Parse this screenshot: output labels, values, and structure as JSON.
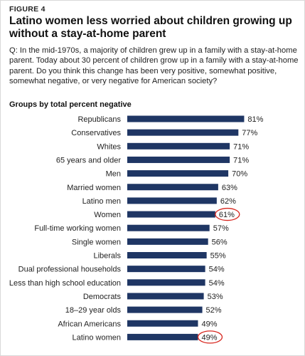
{
  "figure_label": "FIGURE 4",
  "title": "Latino women less worried about children growing up without a stay-at-home parent",
  "question": "Q: In the mid-1970s, a majority of children grew up in a family with a stay-at-home parent. Today about 30 percent of children grow up in a family with a stay-at-home parent. Do you think this change has been very positive, somewhat positive, somewhat negative, or very negative for American society?",
  "subtitle": "Groups by total percent negative",
  "colors": {
    "bar": "#1f3664",
    "highlight_circle": "#d7261e"
  },
  "chart_data": {
    "type": "bar",
    "orientation": "horizontal",
    "categories": [
      "Republicans",
      "Conservatives",
      "Whites",
      "65 years and older",
      "Men",
      "Married women",
      "Latino men",
      "Women",
      "Full-time working women",
      "Single women",
      "Liberals",
      "Dual professional households",
      "Less than high school education",
      "Democrats",
      "18–29 year olds",
      "African Americans",
      "Latino women"
    ],
    "values": [
      81,
      77,
      71,
      71,
      70,
      63,
      62,
      61,
      57,
      56,
      55,
      54,
      54,
      53,
      52,
      49,
      49
    ],
    "value_labels": [
      "81%",
      "77%",
      "71%",
      "71%",
      "70%",
      "63%",
      "62%",
      "61%",
      "57%",
      "56%",
      "55%",
      "54%",
      "54%",
      "53%",
      "52%",
      "49%",
      "49%"
    ],
    "highlighted": [
      "Women",
      "Latino women"
    ],
    "xlim": [
      0,
      100
    ],
    "grid": false,
    "legend": "none"
  }
}
